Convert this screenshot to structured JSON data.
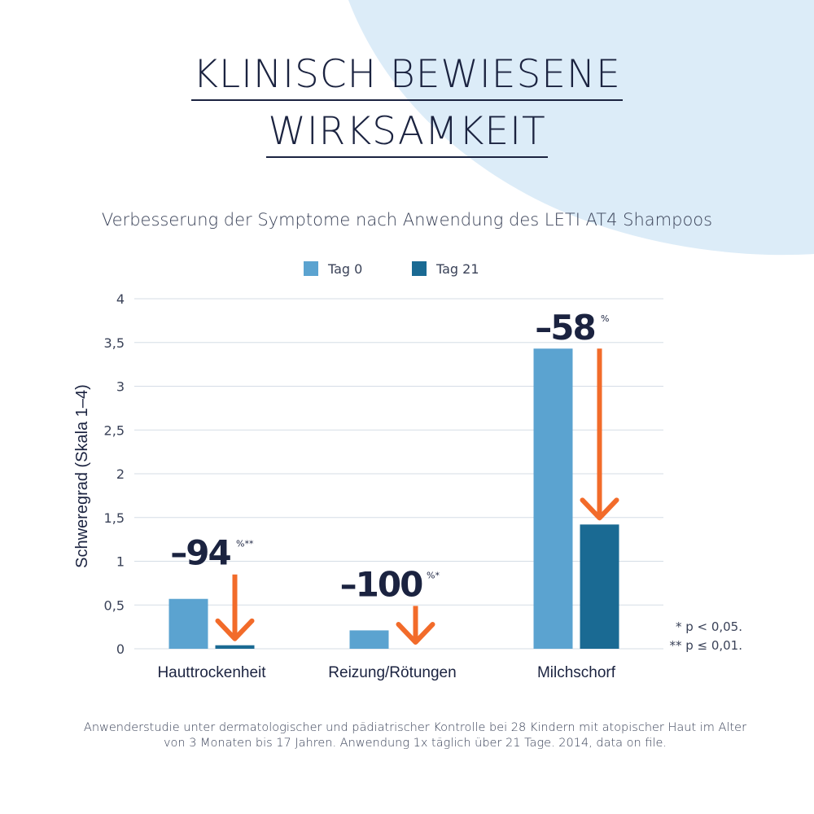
{
  "colors": {
    "tag0": "#5ba3d0",
    "tag21": "#1a6a93",
    "arrow": "#f26b2a",
    "text": "#1b2340",
    "grid": "#d5dde6",
    "background_blob": "#dcecf8"
  },
  "header": {
    "title_line1": "KLINISCH BEWIESENE",
    "title_line2": "WIRKSAMKEIT"
  },
  "chart_data": {
    "type": "bar",
    "title": "Verbesserung der Symptome nach Anwendung des LETI AT4 Shampoos",
    "xlabel": "",
    "ylabel": "Schweregrad (Skala 1–4)",
    "ylim": [
      0,
      4
    ],
    "yticks": [
      0,
      0.5,
      1,
      1.5,
      2,
      2.5,
      3,
      3.5,
      4
    ],
    "ytick_labels": [
      "0",
      "0,5",
      "1",
      "1,5",
      "2",
      "2,5",
      "3",
      "3,5",
      "4"
    ],
    "grid": true,
    "legend_position": "top-center",
    "categories": [
      "Hauttrockenheit",
      "Reizung/Rötungen",
      "Milchschorf"
    ],
    "series": [
      {
        "name": "Tag 0",
        "values": [
          0.57,
          0.21,
          3.43
        ]
      },
      {
        "name": "Tag 21",
        "values": [
          0.04,
          0.0,
          1.42
        ]
      }
    ],
    "annotations": [
      {
        "category": "Hauttrockenheit",
        "change": "–94",
        "marker": "%**"
      },
      {
        "category": "Reizung/Rötungen",
        "change": "–100",
        "marker": "%*"
      },
      {
        "category": "Milchschorf",
        "change": "–58",
        "marker": "%"
      }
    ],
    "significance_notes": [
      "* p < 0,05.",
      "** p ≤ 0,01."
    ]
  },
  "footnote": {
    "line1": "Anwenderstudie unter dermatologischer und pädiatrischer Kontrolle bei 28 Kindern mit atopischer Haut im Alter",
    "line2": "von 3 Monaten bis 17 Jahren. Anwendung 1x täglich über 21 Tage. 2014, data on file."
  }
}
